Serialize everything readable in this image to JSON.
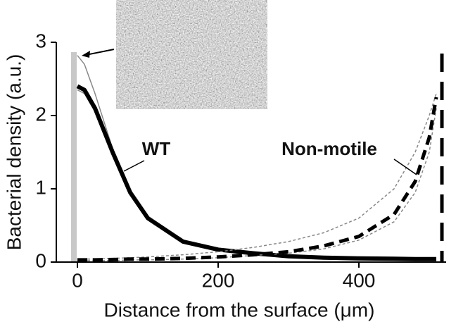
{
  "chart_data": {
    "type": "line",
    "x_label": "Distance from the surface (μm)",
    "y_label": "Bacterial density (a.u.)",
    "annotations": [
      "WT",
      "Non-motile"
    ],
    "x": [
      0,
      10,
      25,
      50,
      75,
      100,
      150,
      200,
      250,
      300,
      350,
      400,
      450,
      480,
      500,
      510
    ],
    "series": [
      {
        "color": "#888888",
        "width": 1.5,
        "dash": false,
        "values": [
          2.82,
          2.7,
          2.3,
          1.55,
          0.95,
          0.58,
          0.27,
          0.16,
          0.11,
          0.08,
          0.06,
          0.05,
          0.045,
          0.04,
          0.04,
          0.04
        ]
      },
      {
        "color": "#888888",
        "width": 1.5,
        "dash": false,
        "values": [
          2.35,
          2.3,
          2.05,
          1.45,
          0.92,
          0.58,
          0.27,
          0.16,
          0.11,
          0.08,
          0.06,
          0.05,
          0.045,
          0.04,
          0.04,
          0.04
        ]
      },
      {
        "name": "WT",
        "color": "#000000",
        "width": 6,
        "dash": false,
        "values": [
          2.4,
          2.35,
          2.1,
          1.5,
          0.95,
          0.6,
          0.28,
          0.17,
          0.12,
          0.08,
          0.06,
          0.05,
          0.045,
          0.04,
          0.04,
          0.04
        ]
      },
      {
        "color": "#888888",
        "width": 1.5,
        "dash": true,
        "values": [
          0.04,
          0.04,
          0.04,
          0.05,
          0.06,
          0.07,
          0.1,
          0.14,
          0.2,
          0.28,
          0.4,
          0.6,
          1.0,
          1.5,
          2.0,
          2.3
        ]
      },
      {
        "color": "#888888",
        "width": 1.5,
        "dash": true,
        "values": [
          0.02,
          0.02,
          0.02,
          0.02,
          0.03,
          0.03,
          0.04,
          0.06,
          0.09,
          0.12,
          0.18,
          0.3,
          0.55,
          0.95,
          1.5,
          2.1
        ]
      },
      {
        "name": "Non-motile",
        "color": "#000000",
        "width": 5,
        "dash": true,
        "values": [
          0.03,
          0.03,
          0.03,
          0.035,
          0.04,
          0.04,
          0.05,
          0.07,
          0.1,
          0.14,
          0.22,
          0.35,
          0.65,
          1.1,
          1.7,
          2.25
        ]
      }
    ],
    "xlim": [
      -30,
      522
    ],
    "xticks": [
      0,
      200,
      400
    ],
    "ylim": [
      0,
      3
    ],
    "yticks": [
      0,
      1,
      2,
      3
    ]
  }
}
